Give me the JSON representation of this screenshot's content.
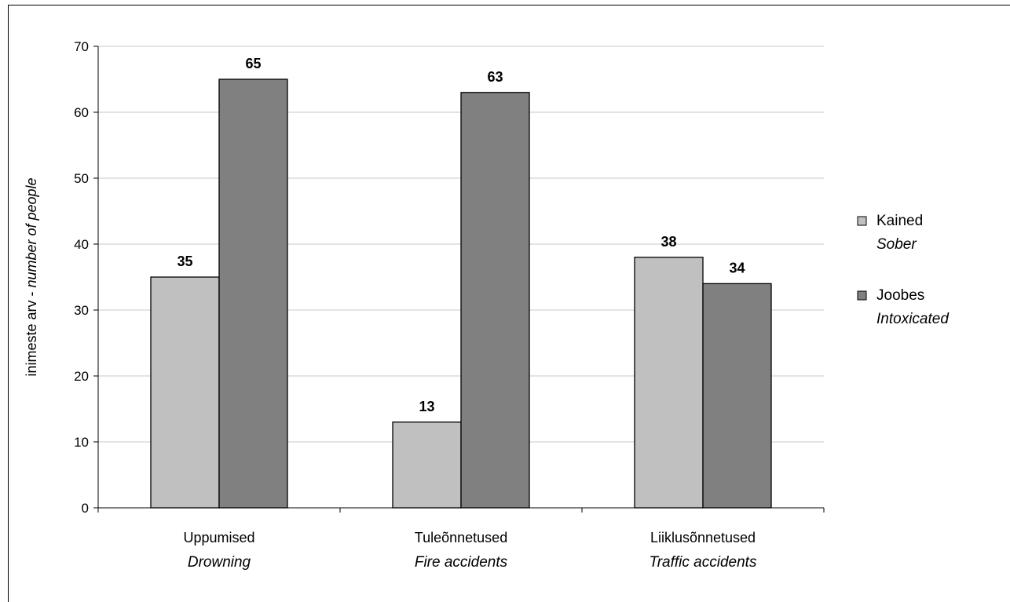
{
  "chart_data": {
    "type": "bar",
    "categories": [
      {
        "label": "Uppumised",
        "label_en": "Drowning"
      },
      {
        "label": "Tuleõnnetused",
        "label_en": "Fire accidents"
      },
      {
        "label": "Liiklusõnnetused",
        "label_en": "Traffic accidents"
      }
    ],
    "series": [
      {
        "name": "Kained",
        "name_en": "Sober",
        "color": "#c0c0c0",
        "values": [
          35,
          13,
          38
        ]
      },
      {
        "name": "Joobes",
        "name_en": "Intoxicated",
        "color": "#808080",
        "values": [
          65,
          63,
          34
        ]
      }
    ],
    "ylabel": "inimeste arv - ",
    "ylabel_en": "number of people",
    "ylim": [
      0,
      70
    ],
    "yticks": [
      0,
      10,
      20,
      30,
      40,
      50,
      60,
      70
    ],
    "grid": true,
    "legend_position": "right",
    "data_labels": true
  }
}
